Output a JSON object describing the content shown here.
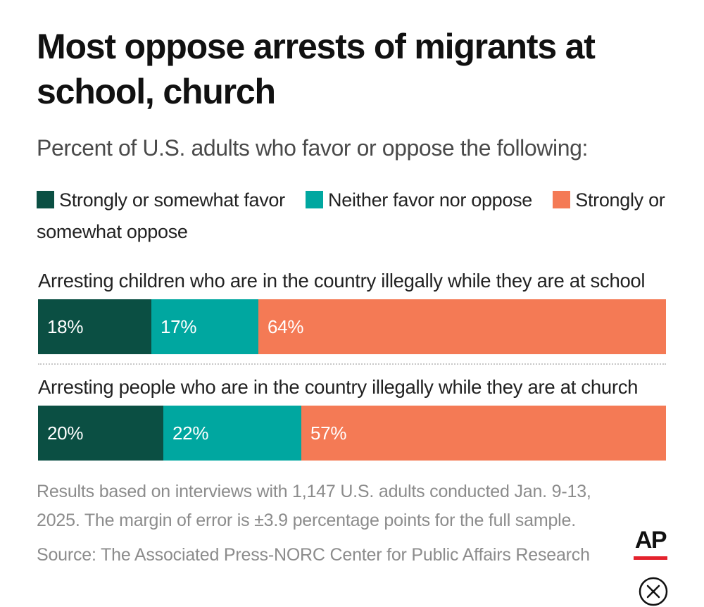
{
  "title": "Most oppose arrests of migrants at school, church",
  "subtitle": "Percent of U.S. adults who favor or oppose the following:",
  "colors": {
    "favor": "#0b4f43",
    "neither": "#00a7a0",
    "oppose": "#f47a55"
  },
  "legend": [
    {
      "label": "Strongly or somewhat favor",
      "color": "#0b4f43"
    },
    {
      "label": "Neither favor nor oppose",
      "color": "#00a7a0"
    },
    {
      "label": "Strongly or somewhat oppose",
      "color": "#f47a55"
    }
  ],
  "chart_data": {
    "type": "bar",
    "orientation": "horizontal",
    "stacked": true,
    "title": "Most oppose arrests of migrants at school, church",
    "subtitle": "Percent of U.S. adults who favor or oppose the following:",
    "categories": [
      "Arresting children who are in the country illegally while they are at school",
      "Arresting people who are in the country illegally while they are at church"
    ],
    "series": [
      {
        "name": "Strongly or somewhat favor",
        "values": [
          18,
          20
        ],
        "labels": [
          "18%",
          "20%"
        ]
      },
      {
        "name": "Neither favor nor oppose",
        "values": [
          17,
          22
        ],
        "labels": [
          "17%",
          "22%"
        ]
      },
      {
        "name": "Strongly or somewhat oppose",
        "values": [
          64,
          57
        ],
        "labels": [
          "64%",
          "57%"
        ]
      }
    ],
    "xlim": [
      0,
      100
    ],
    "legend_position": "top"
  },
  "footnote": "Results based on interviews with 1,147 U.S. adults conducted Jan. 9-13, 2025. The margin of error is ±3.9 percentage points for the full sample.",
  "source": "Source: The Associated Press-NORC Center for Public Affairs Research",
  "logo": {
    "text": "AP",
    "accent_color": "#e4222d"
  },
  "icons": {
    "close": "close-icon"
  }
}
